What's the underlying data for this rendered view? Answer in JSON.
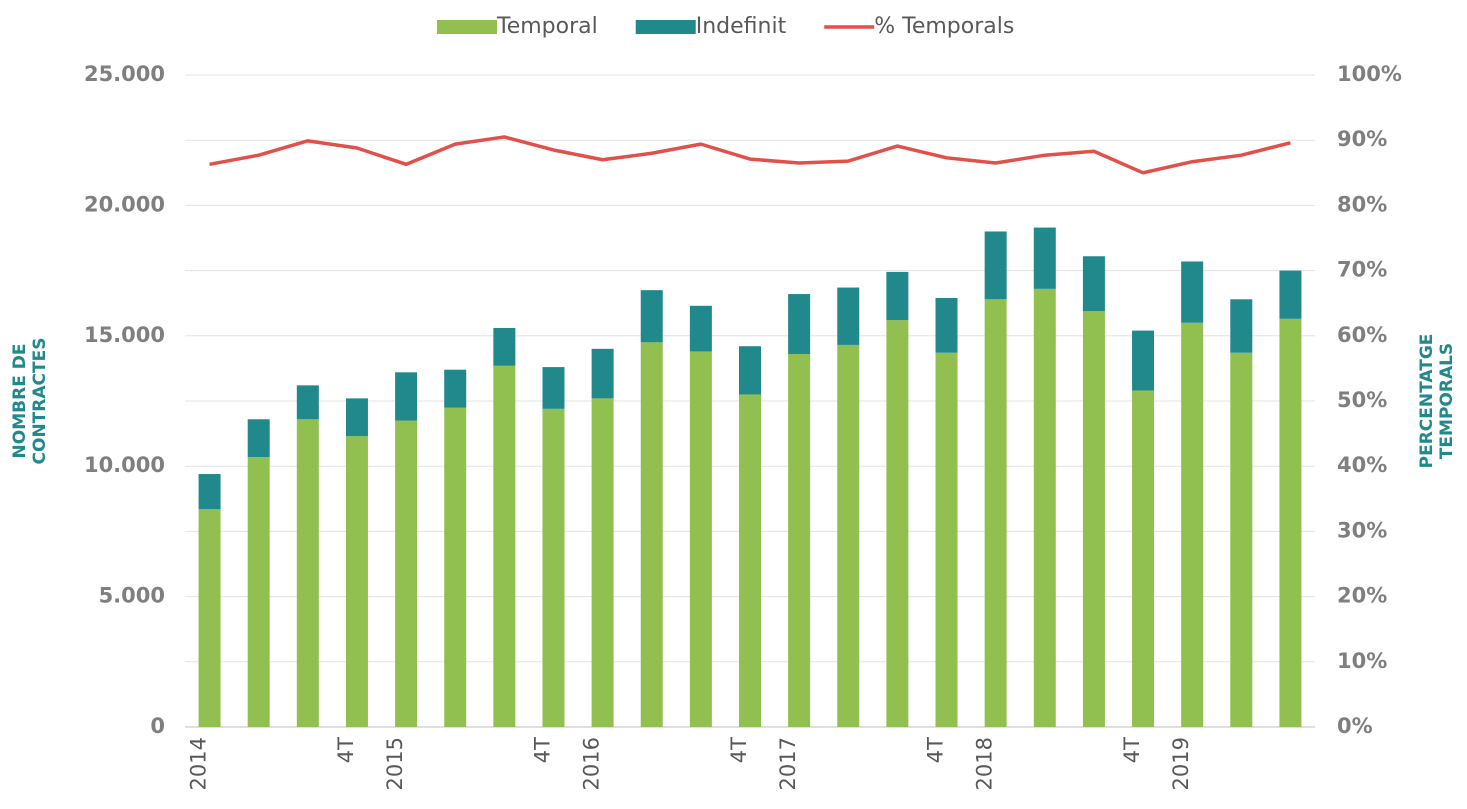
{
  "chart_data": {
    "type": "bar",
    "y_label": [
      "NOMBRE DE",
      "CONTRACTES"
    ],
    "y2_label": [
      "PERCENTATGE",
      "TEMPORALS"
    ],
    "categories": [
      "2014",
      null,
      null,
      "4T",
      "2015",
      null,
      null,
      "4T",
      "2016",
      null,
      null,
      "4T",
      "2017",
      null,
      null,
      "4T",
      "2018",
      null,
      null,
      "4T",
      "2019",
      null,
      null
    ],
    "series": [
      {
        "name": "Temporal",
        "color": "#92c050",
        "values": [
          8350,
          10350,
          11800,
          11150,
          11750,
          12250,
          13850,
          12200,
          12600,
          14750,
          14400,
          12750,
          14300,
          14650,
          15600,
          14350,
          16400,
          16800,
          15950,
          12900,
          15500,
          14350,
          15650
        ]
      },
      {
        "name": "Indefinit",
        "color": "#21898b",
        "values": [
          1350,
          1450,
          1300,
          1450,
          1850,
          1450,
          1450,
          1600,
          1900,
          2000,
          1750,
          1850,
          2300,
          2200,
          1850,
          2100,
          2600,
          2350,
          2100,
          2300,
          2350,
          2050,
          1850
        ]
      },
      {
        "name": "% Temporals",
        "type": "line",
        "axis": "y2",
        "color": "#e2504a",
        "values": [
          86.3,
          87.7,
          89.9,
          88.8,
          86.3,
          89.4,
          90.5,
          88.5,
          87.0,
          88.0,
          89.4,
          87.1,
          86.5,
          86.8,
          89.1,
          87.3,
          86.5,
          87.7,
          88.3,
          85.0,
          86.7,
          87.7,
          89.6
        ]
      }
    ],
    "stacked": true,
    "ylim": [
      0,
      25000
    ],
    "yticks": [
      0,
      {
        "value": 5000,
        "label": "5.000"
      },
      {
        "value": 10000,
        "label": "10.000"
      },
      {
        "value": 15000,
        "label": "15.000"
      },
      {
        "value": 20000,
        "label": "20.000"
      },
      {
        "value": 25000,
        "label": "25.000"
      }
    ],
    "y2lim": [
      0,
      100
    ],
    "y2ticks": [
      {
        "value": 0,
        "label": "0%"
      },
      {
        "value": 10,
        "label": "10%"
      },
      {
        "value": 20,
        "label": "20%"
      },
      {
        "value": 30,
        "label": "30%"
      },
      {
        "value": 40,
        "label": "40%"
      },
      {
        "value": 50,
        "label": "50%"
      },
      {
        "value": 60,
        "label": "60%"
      },
      {
        "value": 70,
        "label": "70%"
      },
      {
        "value": 80,
        "label": "80%"
      },
      {
        "value": 90,
        "label": "90%"
      },
      {
        "value": 100,
        "label": "100%"
      }
    ],
    "grid": true,
    "legend": "top"
  }
}
